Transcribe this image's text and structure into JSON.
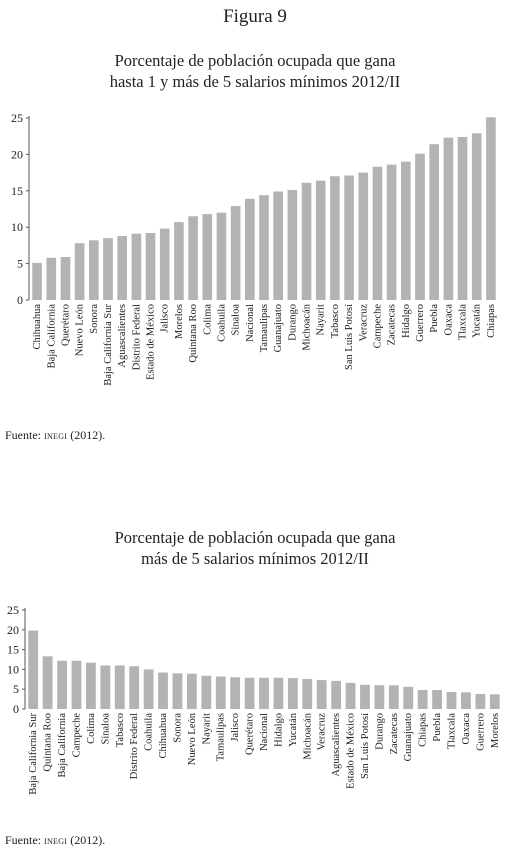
{
  "figure_title": "Figura 9",
  "charts": [
    {
      "title_line1": "Porcentaje de población ocupada que gana",
      "title_line2": "hasta 1 y más de 5 salarios mínimos 2012/II",
      "source_prefix": "Fuente:",
      "source_org": "inegi",
      "source_year": "(2012)."
    },
    {
      "title_line1": "Porcentaje de población ocupada que gana",
      "title_line2": "más de 5 salarios mínimos 2012/II",
      "source_prefix": "Fuente:",
      "source_org": "inegi",
      "source_year": "(2012)."
    }
  ],
  "colors": {
    "bar": "#b3b3b3",
    "axis": "#555555"
  },
  "chart_data": [
    {
      "type": "bar",
      "title": "Porcentaje de población ocupada que gana hasta 1 y más de 5 salarios mínimos 2012/II",
      "xlabel": "",
      "ylabel": "",
      "ylim": [
        0,
        25
      ],
      "yticks": [
        0,
        5,
        10,
        15,
        20,
        25
      ],
      "grid": false,
      "categories": [
        "Chihuahua",
        "Baja California",
        "Querétaro",
        "Nuevo León",
        "Sonora",
        "Baja California Sur",
        "Aguascalientes",
        "Distrito Federal",
        "Estado de México",
        "Jalisco",
        "Morelos",
        "Quintana Roo",
        "Colima",
        "Coahuila",
        "Sinaloa",
        "Nacional",
        "Tamaulipas",
        "Guanajuato",
        "Durango",
        "Michoacán",
        "Nayarit",
        "Tabasco",
        "San Luis Potosí",
        "Veracruz",
        "Campeche",
        "Zacatecas",
        "Hidalgo",
        "Guerrero",
        "Puebla",
        "Oaxaca",
        "Tlaxcala",
        "Yucatán",
        "Chiapas"
      ],
      "values": [
        5.1,
        5.8,
        5.9,
        7.8,
        8.2,
        8.5,
        8.8,
        9.1,
        9.2,
        9.8,
        10.7,
        11.5,
        11.8,
        12.0,
        12.9,
        13.9,
        14.4,
        14.9,
        15.1,
        16.1,
        16.4,
        17.0,
        17.1,
        17.5,
        18.3,
        18.6,
        19.0,
        20.1,
        21.4,
        22.3,
        22.4,
        22.9,
        25.1
      ]
    },
    {
      "type": "bar",
      "title": "Porcentaje de población ocupada que gana más de 5 salarios mínimos 2012/II",
      "xlabel": "",
      "ylabel": "",
      "ylim": [
        0,
        25
      ],
      "yticks": [
        0,
        5,
        10,
        15,
        20,
        25
      ],
      "grid": false,
      "categories": [
        "Baja California Sur",
        "Quintana Roo",
        "Baja California",
        "Campeche",
        "Colima",
        "Sinaloa",
        "Tabasco",
        "Distrito Federal",
        "Coahuila",
        "Chihuahua",
        "Sonora",
        "Nuevo León",
        "Nayarit",
        "Tamaulipas",
        "Jalisco",
        "Querétaro",
        "Nacional",
        "Hidalgo",
        "Yucatán",
        "Michoacán",
        "Veracruz",
        "Aguascalientes",
        "Estado de México",
        "San Luis Potosí",
        "Durango",
        "Zacatecas",
        "Guanajuato",
        "Chiapas",
        "Puebla",
        "Tlaxcala",
        "Oaxaca",
        "Guerrero",
        "Morelos"
      ],
      "values": [
        19.8,
        13.3,
        12.2,
        12.2,
        11.7,
        11.0,
        11.0,
        10.8,
        10.0,
        9.2,
        9.0,
        8.9,
        8.4,
        8.2,
        8.0,
        7.9,
        7.9,
        7.9,
        7.8,
        7.6,
        7.3,
        7.1,
        6.6,
        6.1,
        6.0,
        6.0,
        5.6,
        4.8,
        4.8,
        4.3,
        4.2,
        3.8,
        3.7
      ]
    }
  ]
}
